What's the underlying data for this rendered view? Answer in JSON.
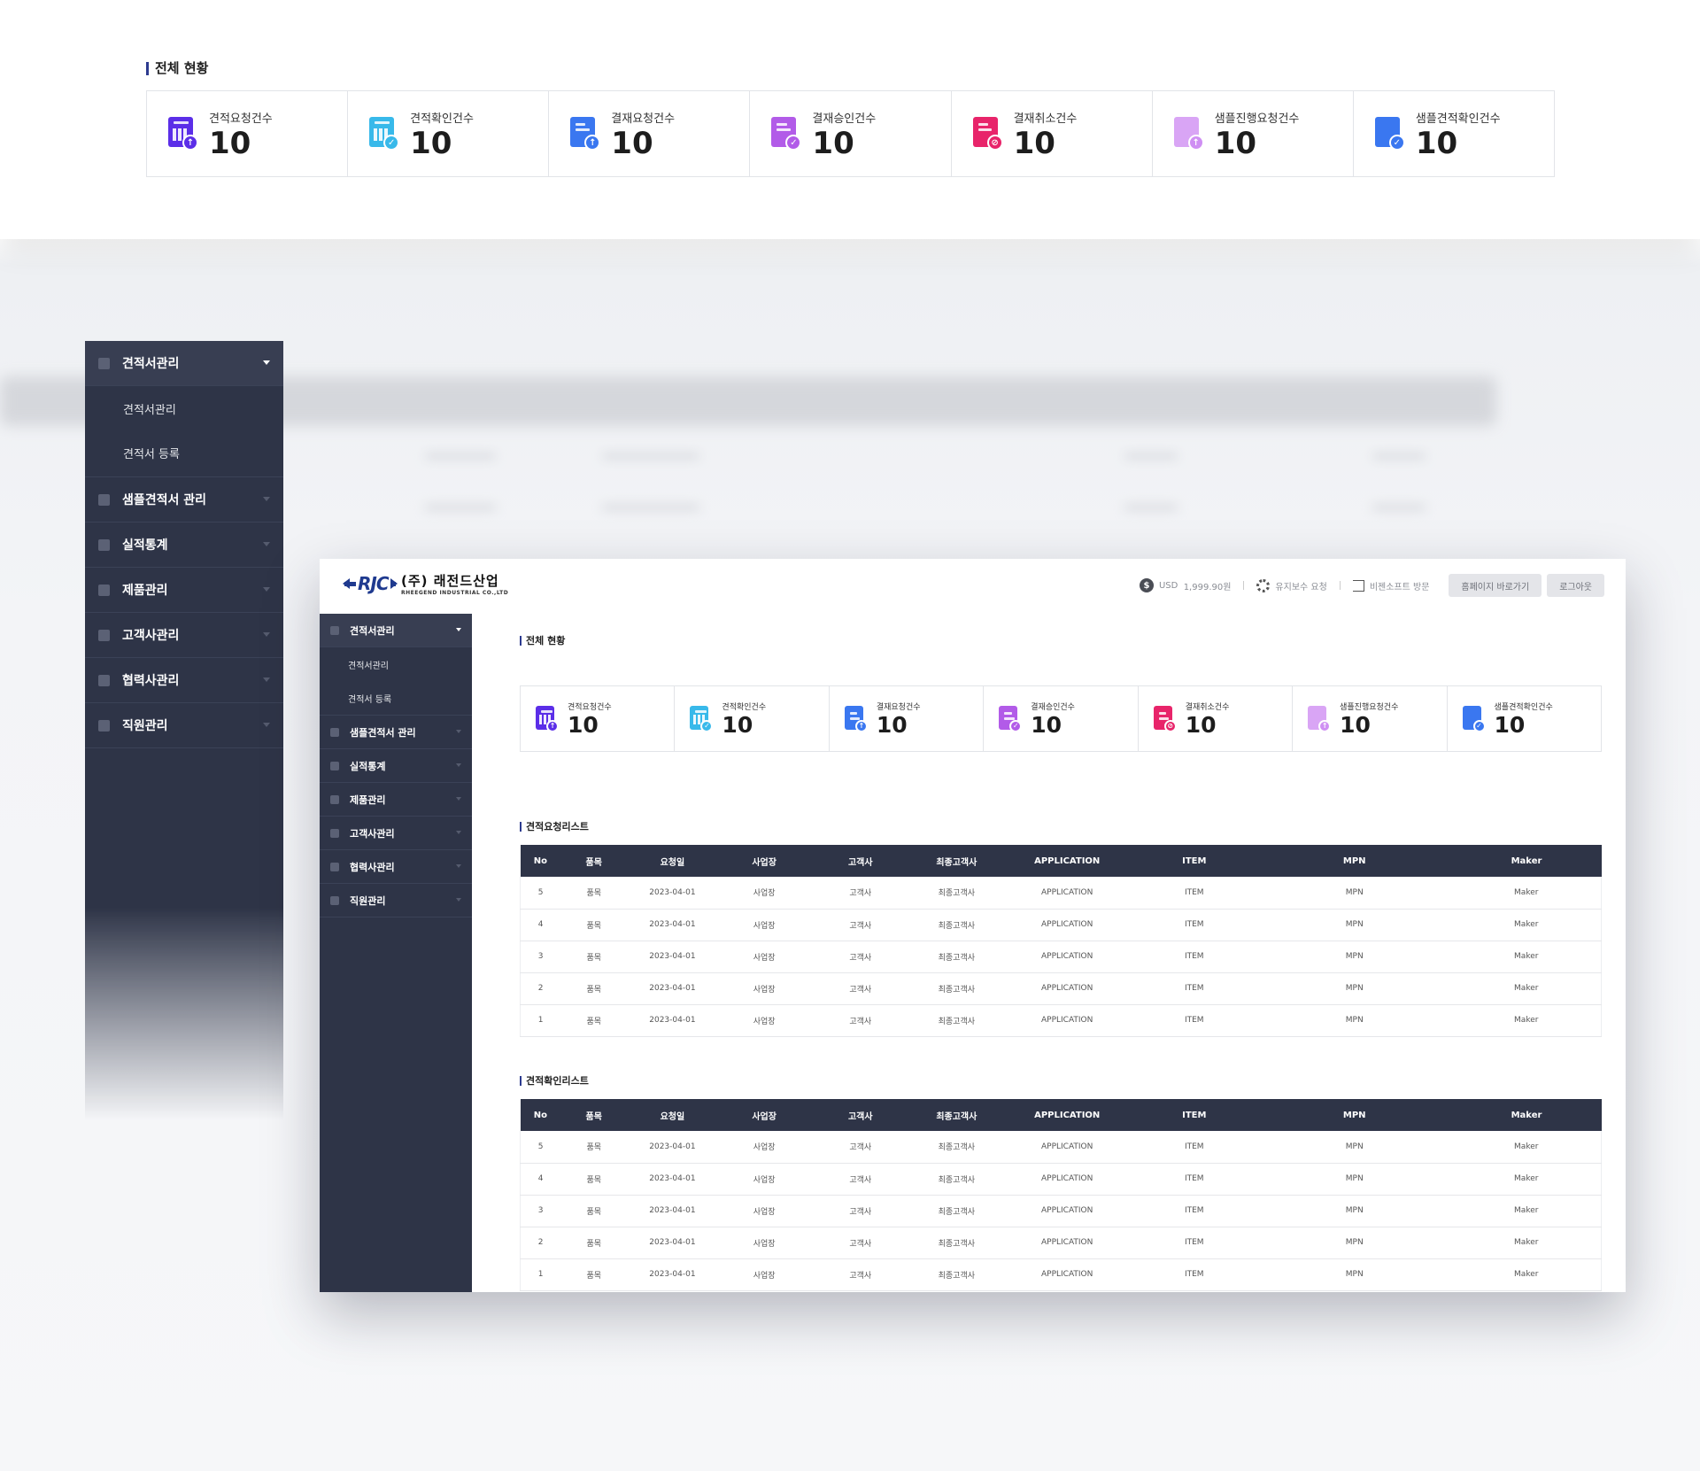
{
  "top": {
    "section_title": "전체 현황",
    "stats": [
      {
        "label": "견적요청건수",
        "value": "10",
        "icon": "calc-doc-upload-icon",
        "color": "#5b2ee8",
        "badge_color": "#5b2ee8",
        "badge": "↑"
      },
      {
        "label": "견적확인건수",
        "value": "10",
        "icon": "calc-doc-check-icon",
        "color": "#38b9ea",
        "badge_color": "#38b9ea",
        "badge": "✓"
      },
      {
        "label": "결재요청건수",
        "value": "10",
        "icon": "doc-upload-icon",
        "color": "#3a77f0",
        "badge_color": "#3a77f0",
        "badge": "↑"
      },
      {
        "label": "결재승인건수",
        "value": "10",
        "icon": "doc-check-icon",
        "color": "#b25be8",
        "badge_color": "#b25be8",
        "badge": "✓"
      },
      {
        "label": "결재취소건수",
        "value": "10",
        "icon": "doc-cancel-icon",
        "color": "#e8246a",
        "badge_color": "#e8246a",
        "badge": "⊘"
      },
      {
        "label": "샘플진행요청건수",
        "value": "10",
        "icon": "sample-upload-icon",
        "color": "#cf8ff3",
        "badge_color": "#cf8ff3",
        "badge": "↑"
      },
      {
        "label": "샘플견적확인건수",
        "value": "10",
        "icon": "sample-check-icon",
        "color": "#3a77f0",
        "badge_color": "#3a77f0",
        "badge": "✓"
      }
    ]
  },
  "sidebar": {
    "items": [
      {
        "label": "견적서관리",
        "icon": "document-icon",
        "active": true,
        "subitems": [
          "견적서관리",
          "견적서 등록"
        ]
      },
      {
        "label": "샘플견적서 관리",
        "icon": "grid-icon"
      },
      {
        "label": "실적통계",
        "icon": "bar-chart-icon"
      },
      {
        "label": "제품관리",
        "icon": "box-icon"
      },
      {
        "label": "고객사관리",
        "icon": "building-icon"
      },
      {
        "label": "협력사관리",
        "icon": "handshake-icon"
      },
      {
        "label": "직원관리",
        "icon": "user-icon"
      }
    ]
  },
  "header": {
    "company_name": "(주) 래전드산업",
    "company_en": "RHEEGEND INDUSTRIAL CO.,LTD",
    "logo_mark": "RJC",
    "currency_label": "USD",
    "currency_value": "1,999.90원",
    "maintenance": "유지보수 요청",
    "visit": "비젠소프트 방문",
    "homepage_button": "홈페이지 바로가기",
    "logout_button": "로그아웃"
  },
  "main": {
    "section_title": "전체 현황",
    "request_list_title": "견적요청리스트",
    "confirm_list_title": "견적확인리스트",
    "columns": [
      "No",
      "품목",
      "요청일",
      "사업장",
      "고객사",
      "최종고객사",
      "APPLICATION",
      "ITEM",
      "MPN",
      "Maker"
    ],
    "request_rows": [
      [
        "5",
        "품목",
        "2023-04-01",
        "사업장",
        "고객사",
        "최종고객사",
        "APPLICATION",
        "ITEM",
        "MPN",
        "Maker"
      ],
      [
        "4",
        "품목",
        "2023-04-01",
        "사업장",
        "고객사",
        "최종고객사",
        "APPLICATION",
        "ITEM",
        "MPN",
        "Maker"
      ],
      [
        "3",
        "품목",
        "2023-04-01",
        "사업장",
        "고객사",
        "최종고객사",
        "APPLICATION",
        "ITEM",
        "MPN",
        "Maker"
      ],
      [
        "2",
        "품목",
        "2023-04-01",
        "사업장",
        "고객사",
        "최종고객사",
        "APPLICATION",
        "ITEM",
        "MPN",
        "Maker"
      ],
      [
        "1",
        "품목",
        "2023-04-01",
        "사업장",
        "고객사",
        "최종고객사",
        "APPLICATION",
        "ITEM",
        "MPN",
        "Maker"
      ]
    ],
    "confirm_rows": [
      [
        "5",
        "품목",
        "2023-04-01",
        "사업장",
        "고객사",
        "최종고객사",
        "APPLICATION",
        "ITEM",
        "MPN",
        "Maker"
      ],
      [
        "4",
        "품목",
        "2023-04-01",
        "사업장",
        "고객사",
        "최종고객사",
        "APPLICATION",
        "ITEM",
        "MPN",
        "Maker"
      ],
      [
        "3",
        "품목",
        "2023-04-01",
        "사업장",
        "고객사",
        "최종고객사",
        "APPLICATION",
        "ITEM",
        "MPN",
        "Maker"
      ],
      [
        "2",
        "품목",
        "2023-04-01",
        "사업장",
        "고객사",
        "최종고객사",
        "APPLICATION",
        "ITEM",
        "MPN",
        "Maker"
      ],
      [
        "1",
        "품목",
        "2023-04-01",
        "사업장",
        "고객사",
        "최종고객사",
        "APPLICATION",
        "ITEM",
        "MPN",
        "Maker"
      ]
    ]
  },
  "colors": {
    "sidebar_bg": "#2e3447",
    "table_header_bg": "#2e3447",
    "accent": "#2d3b8f"
  }
}
